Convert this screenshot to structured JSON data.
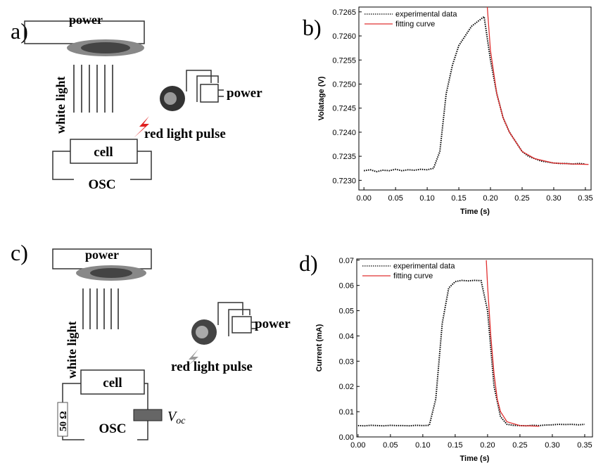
{
  "diagrams": [
    {
      "label": "a)",
      "power_top": "power",
      "white_light": "white light",
      "power_right": "power",
      "pulse": "red light pulse",
      "cell": "cell",
      "osc": "OSC"
    },
    {
      "label": "c)",
      "power_top": "power",
      "white_light": "white light",
      "power_right": "power",
      "pulse": "red light pulse",
      "cell": "cell",
      "resistor": "50 Ω",
      "osc": "OSC",
      "voltage_symbol": "V",
      "voltage_subscript": "oc"
    }
  ],
  "chart_data": [
    {
      "type": "line",
      "panel_label": "b)",
      "xlabel": "Time (s)",
      "ylabel": "Volatage (V)",
      "xlim": [
        -0.008,
        0.359
      ],
      "ylim": [
        0.7228,
        0.7266
      ],
      "xticks": [
        {
          "value": 0,
          "label": "0.00"
        },
        0.05,
        {
          "value": 0.1,
          "label": "0.10"
        },
        0.15,
        {
          "value": 0.2,
          "label": "0.20"
        },
        0.25,
        {
          "value": 0.3,
          "label": "0.30"
        },
        0.35
      ],
      "yticks": [
        {
          "value": 0.723,
          "label": "0.7230"
        },
        0.7235,
        {
          "value": 0.724,
          "label": "0.7240"
        },
        0.7245,
        {
          "value": 0.725,
          "label": "0.7250"
        },
        0.7255,
        {
          "value": 0.726,
          "label": "0.7260"
        },
        0.7265
      ],
      "legend": "upper left",
      "series": [
        {
          "name": "experimental data",
          "color": "#000000",
          "linestyle": "dotted",
          "x": [
            0,
            0.01,
            0.02,
            0.03,
            0.04,
            0.05,
            0.06,
            0.07,
            0.08,
            0.09,
            0.1,
            0.11,
            0.12,
            0.13,
            0.14,
            0.15,
            0.16,
            0.17,
            0.18,
            0.19,
            0.2,
            0.21,
            0.22,
            0.23,
            0.24,
            0.25,
            0.26,
            0.27,
            0.28,
            0.29,
            0.3,
            0.31,
            0.32,
            0.33,
            0.34,
            0.35
          ],
          "values": [
            0.7232,
            0.72322,
            0.72318,
            0.72321,
            0.7232,
            0.72323,
            0.7232,
            0.72322,
            0.72321,
            0.72323,
            0.72322,
            0.72325,
            0.7236,
            0.7248,
            0.7254,
            0.7258,
            0.726,
            0.7262,
            0.7263,
            0.7264,
            0.7255,
            0.7248,
            0.7243,
            0.724,
            0.7238,
            0.7236,
            0.7235,
            0.72345,
            0.7234,
            0.72338,
            0.72336,
            0.72335,
            0.72335,
            0.72334,
            0.72335,
            0.72334
          ]
        },
        {
          "name": "fitting curve",
          "color": "#e03030",
          "linestyle": "solid",
          "x": [
            0.195,
            0.2,
            0.21,
            0.22,
            0.23,
            0.24,
            0.25,
            0.27,
            0.3,
            0.33,
            0.355
          ],
          "values": [
            0.7266,
            0.7257,
            0.7248,
            0.7243,
            0.724,
            0.7238,
            0.7236,
            0.72345,
            0.72336,
            0.72334,
            0.72333
          ]
        }
      ]
    },
    {
      "type": "line",
      "panel_label": "d)",
      "xlabel": "Time (s)",
      "ylabel": "Current (mA)",
      "xlim": [
        -0.002,
        0.362
      ],
      "ylim": [
        0,
        0.0705
      ],
      "xticks": [
        {
          "value": 0,
          "label": "0.00"
        },
        0.05,
        {
          "value": 0.1,
          "label": "0.10"
        },
        0.15,
        {
          "value": 0.2,
          "label": "0.20"
        },
        0.25,
        {
          "value": 0.3,
          "label": "0.30"
        },
        0.35
      ],
      "yticks": [
        {
          "value": 0,
          "label": "0.00"
        },
        0.01,
        0.02,
        0.03,
        0.04,
        0.05,
        0.06,
        0.07
      ],
      "legend": "upper left",
      "series": [
        {
          "name": "experimental data",
          "color": "#000000",
          "linestyle": "dotted",
          "x": [
            0,
            0.01,
            0.02,
            0.03,
            0.04,
            0.05,
            0.06,
            0.07,
            0.08,
            0.09,
            0.1,
            0.11,
            0.12,
            0.13,
            0.14,
            0.15,
            0.16,
            0.17,
            0.18,
            0.19,
            0.2,
            0.21,
            0.22,
            0.23,
            0.24,
            0.25,
            0.26,
            0.27,
            0.28,
            0.29,
            0.3,
            0.31,
            0.32,
            0.33,
            0.34,
            0.35
          ],
          "values": [
            0.0045,
            0.0044,
            0.0046,
            0.0045,
            0.0044,
            0.0046,
            0.0045,
            0.0045,
            0.0044,
            0.0046,
            0.0045,
            0.0046,
            0.015,
            0.045,
            0.059,
            0.0615,
            0.062,
            0.0618,
            0.062,
            0.0619,
            0.05,
            0.02,
            0.008,
            0.005,
            0.0046,
            0.0045,
            0.0044,
            0.0046,
            0.0045,
            0.0047,
            0.0048,
            0.005,
            0.0049,
            0.005,
            0.0048,
            0.005
          ]
        },
        {
          "name": "fitting curve",
          "color": "#e03030",
          "linestyle": "solid",
          "x": [
            0.198,
            0.2,
            0.205,
            0.21,
            0.215,
            0.22,
            0.23,
            0.25,
            0.28
          ],
          "values": [
            0.07,
            0.06,
            0.04,
            0.025,
            0.015,
            0.01,
            0.006,
            0.0045,
            0.0042
          ]
        }
      ]
    }
  ]
}
